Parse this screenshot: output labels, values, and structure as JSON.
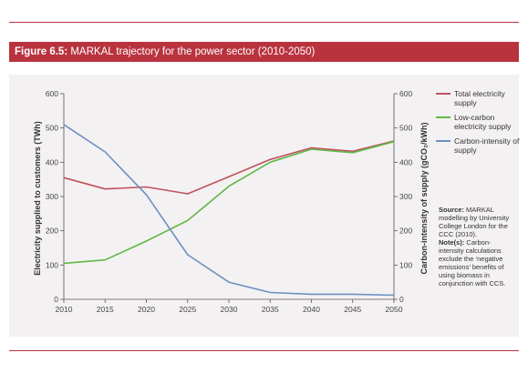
{
  "figure": {
    "label": "Figure 6.5:",
    "title": " MARKAL trajectory for the power sector (2010-2050)"
  },
  "colors": {
    "accent": "#b9333f",
    "total": "#c0515e",
    "lowcarbon": "#5fb847",
    "intensity": "#6c8fc4"
  },
  "chart_data": {
    "type": "line",
    "title": "MARKAL trajectory for the power sector (2010-2050)",
    "x": [
      2010,
      2015,
      2020,
      2025,
      2030,
      2035,
      2040,
      2045,
      2050
    ],
    "xticks": [
      "2010",
      "2015",
      "2020",
      "2025",
      "2030",
      "2035",
      "2040",
      "2045",
      "2050"
    ],
    "ylabel": "Electricity supplied to customers (TWh)",
    "ylabel2": "Carbon-intensity of supply (gCO₂/kWh)",
    "ylim": [
      0,
      600
    ],
    "y2lim": [
      0,
      600
    ],
    "yticks": [
      "0",
      "100",
      "200",
      "300",
      "400",
      "500",
      "600"
    ],
    "y2ticks": [
      "0",
      "100",
      "200",
      "300",
      "400",
      "500",
      "600"
    ],
    "grid": false,
    "legend_position": "right",
    "series": [
      {
        "name": "Total electricity supply",
        "axis": "left",
        "color": "#c0515e",
        "values": [
          355,
          322,
          328,
          308,
          358,
          408,
          442,
          432,
          462
        ]
      },
      {
        "name": "Low-carbon electricity supply",
        "axis": "left",
        "color": "#5fb847",
        "values": [
          105,
          115,
          170,
          230,
          330,
          400,
          438,
          428,
          460
        ]
      },
      {
        "name": "Carbon-intensity of supply",
        "axis": "right",
        "color": "#6c8fc4",
        "values": [
          510,
          430,
          305,
          130,
          50,
          20,
          15,
          15,
          12
        ]
      }
    ]
  },
  "legend": [
    {
      "label": "Total electricity supply",
      "color": "#c0515e"
    },
    {
      "label": "Low-carbon electricity supply",
      "color": "#5fb847"
    },
    {
      "label": "Carbon-intensity of supply",
      "color": "#6c8fc4"
    }
  ],
  "note": {
    "source_label": "Source:",
    "source_text": " MARKAL modelling by University College London for the CCC (2010).",
    "notes_label": "Note(s):",
    "notes_text": " Carbon-intensity calculations exclude the ‘negative emissions’ benefits of using biomass in conjunction with CCS."
  }
}
